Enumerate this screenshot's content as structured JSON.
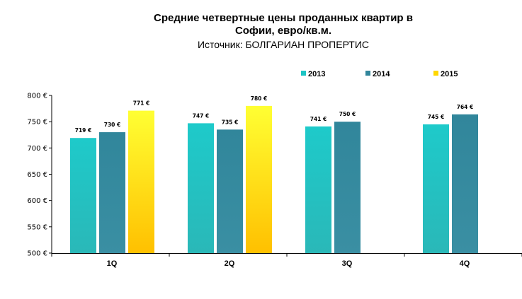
{
  "chart_data": {
    "type": "bar",
    "title_lines": [
      "Средние четвертные цены проданных квартир в",
      "Софии, евро/кв.м."
    ],
    "subtitle": "Источник: БОЛГАРИАН ПРОПЕРТИС",
    "categories": [
      "1Q",
      "2Q",
      "3Q",
      "4Q"
    ],
    "series": [
      {
        "name": "2013",
        "values": [
          719,
          747,
          741,
          745
        ],
        "labels": [
          "719 €",
          "747 €",
          "741 €",
          "745 €"
        ],
        "color": "#1cc4c4",
        "label_color": "#000000"
      },
      {
        "name": "2014",
        "values": [
          730,
          735,
          750,
          764
        ],
        "labels": [
          "730 €",
          "735 €",
          "750 €",
          "764 €"
        ],
        "color": "#31869b",
        "label_color": "#000000"
      },
      {
        "name": "2015",
        "values": [
          771,
          780,
          null,
          null
        ],
        "labels": [
          "771 €",
          "780 €",
          "",
          ""
        ],
        "color": "#ffd700",
        "label_color": "#c00000"
      }
    ],
    "yticks": [
      "500 €",
      "550 €",
      "600 €",
      "650 €",
      "700 €",
      "750 €",
      "800 €"
    ],
    "ylim": [
      500,
      800
    ],
    "ystep": 50,
    "grid": false,
    "legend_position": "top"
  }
}
